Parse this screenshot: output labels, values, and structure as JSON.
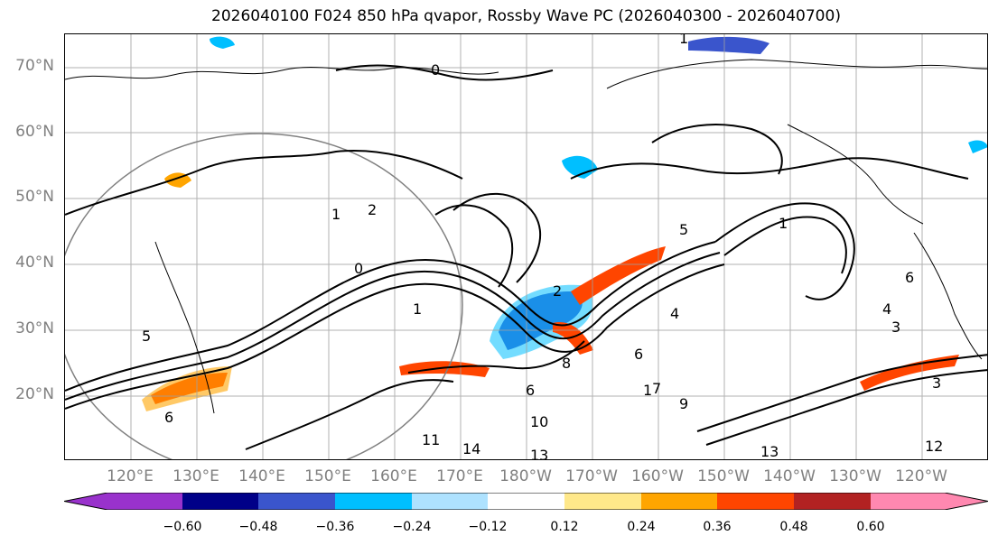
{
  "title": "2026040100 F024 850 hPa qvapor, Rossby Wave PC (2026040300 - 2026040700)",
  "map": {
    "lat_labels": [
      "70°N",
      "60°N",
      "50°N",
      "40°N",
      "30°N",
      "20°N"
    ],
    "lon_labels": [
      "120°E",
      "130°E",
      "140°E",
      "150°E",
      "160°E",
      "170°E",
      "180°W",
      "170°W",
      "160°W",
      "150°W",
      "140°W",
      "130°W",
      "120°W"
    ],
    "contour_labels": [
      "1",
      "0",
      "1",
      "2",
      "0",
      "1",
      "1",
      "5",
      "1",
      "2",
      "6",
      "4",
      "3",
      "4",
      "6",
      "8",
      "9",
      "7",
      "6",
      "10",
      "11",
      "13",
      "14",
      "12",
      "13",
      "3",
      "6",
      "5"
    ],
    "extent_lat": [
      10,
      75
    ],
    "extent_lon_east": [
      110,
      250
    ],
    "gridline_color": "#a0a0a0",
    "contour_color": "#000000",
    "coastline_color": "#000000"
  },
  "colorbar": {
    "under_color": "#9932cc",
    "over_color": "#ff88b0",
    "bins": [
      {
        "color": "#9932cc"
      },
      {
        "color": "#000088"
      },
      {
        "color": "#3a55cc"
      },
      {
        "color": "#00bfff"
      },
      {
        "color": "#aee2ff"
      },
      {
        "color": "#ffffff"
      },
      {
        "color": "#ffe88a"
      },
      {
        "color": "#ffa500"
      },
      {
        "color": "#ff4500"
      },
      {
        "color": "#b22222"
      },
      {
        "color": "#ff88b0"
      }
    ],
    "tick_labels": [
      "−0.60",
      "−0.48",
      "−0.36",
      "−0.24",
      "−0.12",
      "0.12",
      "0.24",
      "0.36",
      "0.48",
      "0.60"
    ]
  }
}
